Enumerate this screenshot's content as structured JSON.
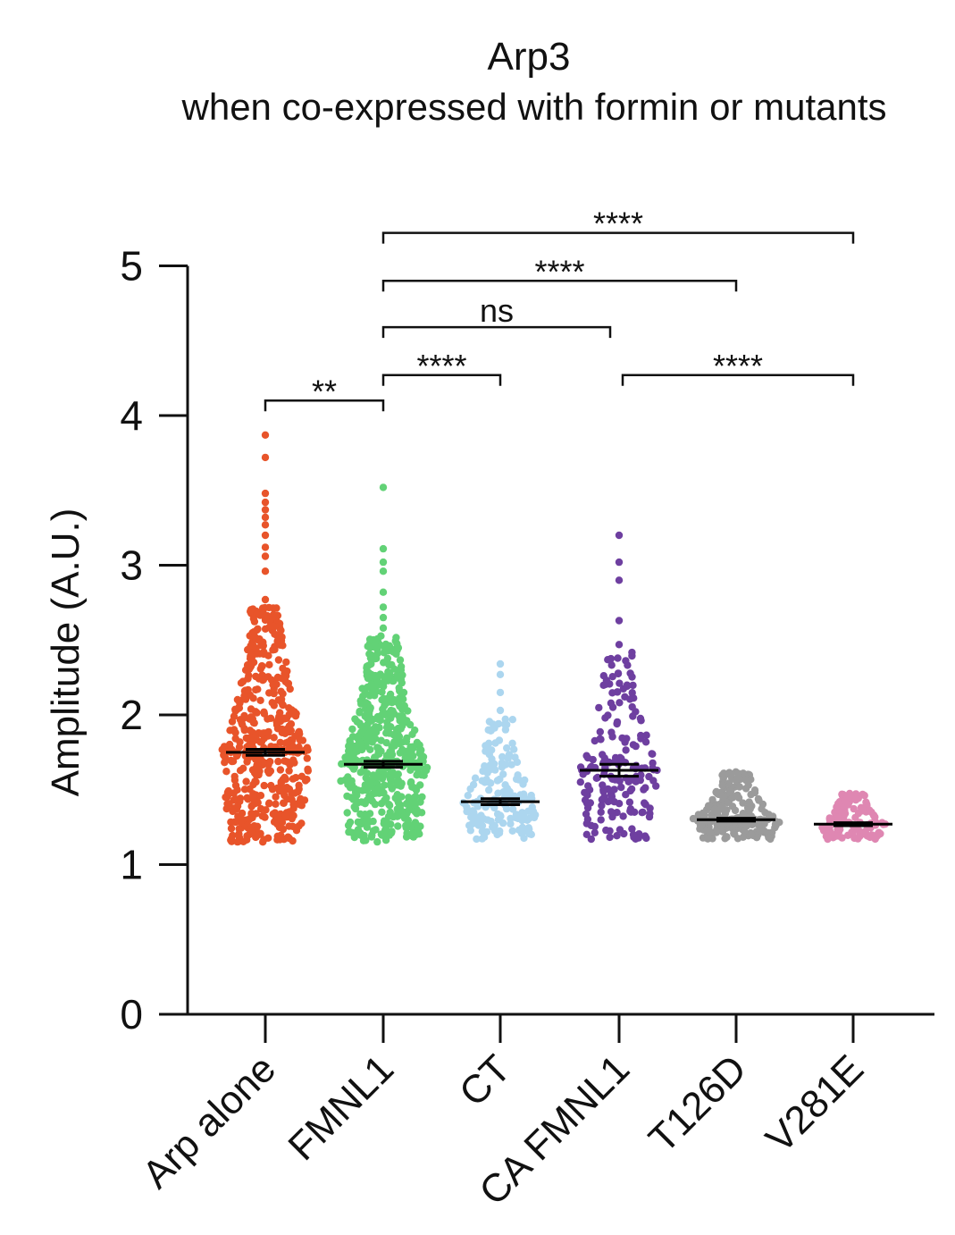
{
  "chart_data": {
    "type": "scatter",
    "title": "Arp3",
    "subtitle": "when co-expressed with formin or mutants",
    "ylabel": "Amplitude (A.U.)",
    "xlabel": "",
    "ylim": [
      0,
      5
    ],
    "yticks": [
      "0",
      "1",
      "2",
      "3",
      "4",
      "5"
    ],
    "categories": [
      "Arp alone",
      "FMNL1",
      "CT",
      "CA FMNL1",
      "T126D",
      "V281E"
    ],
    "series": [
      {
        "color": "#e8542a",
        "mean": 1.75,
        "sem": 0.02,
        "min": 1.15,
        "max": 3.87,
        "n": 520,
        "outliers": [
          3.87,
          3.72,
          3.48,
          3.42,
          3.37,
          3.32,
          3.27,
          3.2,
          3.12,
          3.06,
          2.96,
          2.77
        ]
      },
      {
        "color": "#62d276",
        "mean": 1.67,
        "sem": 0.02,
        "min": 1.15,
        "max": 3.52,
        "n": 560,
        "outliers": [
          3.52,
          3.11,
          3.02,
          2.96,
          2.82,
          2.72,
          2.65,
          2.58
        ]
      },
      {
        "color": "#acd6ef",
        "mean": 1.42,
        "sem": 0.02,
        "min": 1.17,
        "max": 2.34,
        "n": 170,
        "outliers": [
          2.34,
          2.27,
          2.15,
          2.03
        ]
      },
      {
        "color": "#6e3fa0",
        "mean": 1.63,
        "sem": 0.04,
        "min": 1.17,
        "max": 3.2,
        "n": 190,
        "outliers": [
          3.2,
          3.02,
          2.9,
          2.63,
          2.47
        ]
      },
      {
        "color": "#9b9b9b",
        "mean": 1.3,
        "sem": 0.01,
        "min": 1.17,
        "max": 1.62,
        "n": 230,
        "outliers": []
      },
      {
        "color": "#df87b2",
        "mean": 1.27,
        "sem": 0.01,
        "min": 1.17,
        "max": 1.48,
        "n": 130,
        "outliers": []
      }
    ],
    "significance": [
      {
        "from": 0,
        "to": 1,
        "label": "**",
        "y": 4.1
      },
      {
        "from": 1,
        "to": 2,
        "label": "****",
        "y": 4.27
      },
      {
        "from": 1,
        "to": 3,
        "label": "ns",
        "y": 4.59
      },
      {
        "from": 3,
        "to": 5,
        "label": "****",
        "y": 4.27
      },
      {
        "from": 1,
        "to": 4,
        "label": "****",
        "y": 4.9
      },
      {
        "from": 1,
        "to": 5,
        "label": "****",
        "y": 5.22
      }
    ]
  }
}
